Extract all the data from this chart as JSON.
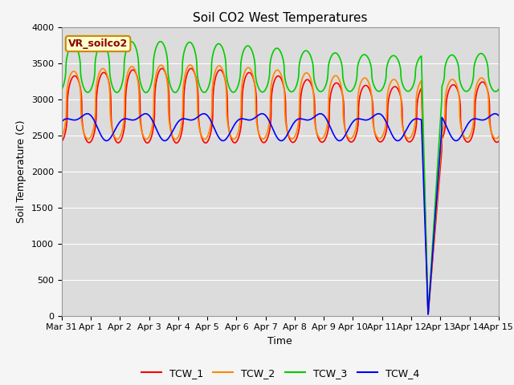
{
  "title": "Soil CO2 West Temperatures",
  "xlabel": "Time",
  "ylabel": "Soil Temperature (C)",
  "ylim": [
    0,
    4000
  ],
  "bg_color": "#dcdcdc",
  "fig_color": "#f5f5f5",
  "annotation_label": "VR_soilco2",
  "annotation_bg": "#ffffcc",
  "annotation_border": "#cc8800",
  "annotation_text_color": "#8B0000",
  "series_colors": [
    "#ff0000",
    "#ff8800",
    "#00cc00",
    "#0000ff"
  ],
  "series_names": [
    "TCW_1",
    "TCW_2",
    "TCW_3",
    "TCW_4"
  ],
  "xtick_labels": [
    "Mar 31",
    "Apr 1",
    "Apr 2",
    "Apr 3",
    "Apr 4",
    "Apr 5",
    "Apr 6",
    "Apr 7",
    "Apr 8",
    "Apr 9",
    "Apr 10",
    "Apr 11",
    "Apr 12",
    "Apr 13",
    "Apr 14",
    "Apr 15"
  ],
  "ytick_values": [
    0,
    500,
    1000,
    1500,
    2000,
    2500,
    3000,
    3500,
    4000
  ]
}
